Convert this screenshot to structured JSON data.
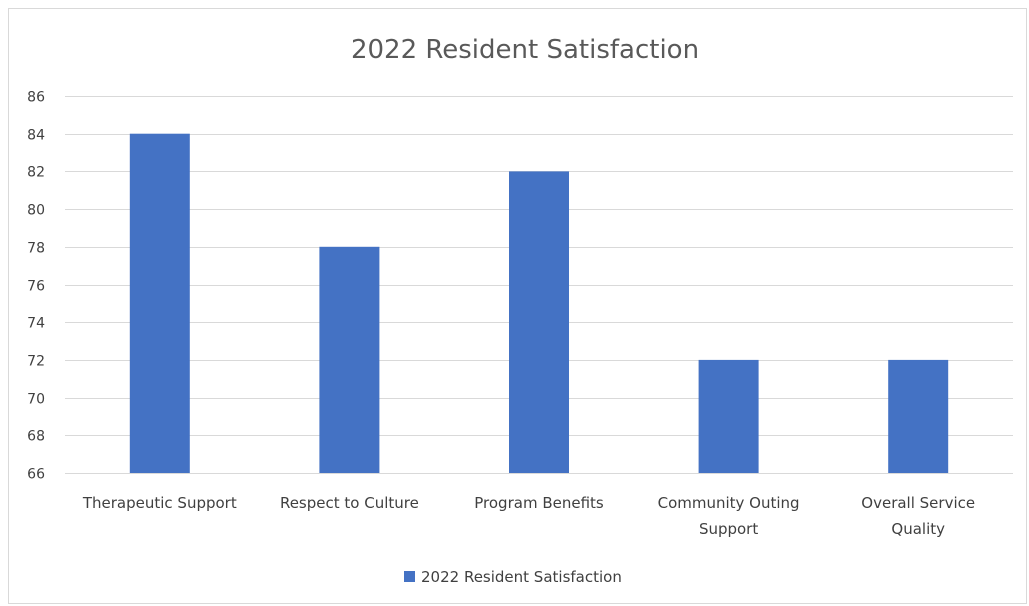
{
  "chart_data": {
    "type": "bar",
    "title": "2022 Resident Satisfaction",
    "categories": [
      [
        "Therapeutic Support"
      ],
      [
        "Respect to Culture"
      ],
      [
        "Program Benefits"
      ],
      [
        "Community Outing",
        "Support"
      ],
      [
        "Overall Service",
        "Quality"
      ]
    ],
    "series": [
      {
        "name": "2022 Resident Satisfaction",
        "values": [
          84,
          78,
          82,
          72,
          72
        ],
        "color": "#4472c4"
      }
    ],
    "ylim": [
      66,
      86
    ],
    "ytick_step": 2,
    "grid": true,
    "legend": "bottom",
    "gridline_color": "#d9d9d9"
  }
}
